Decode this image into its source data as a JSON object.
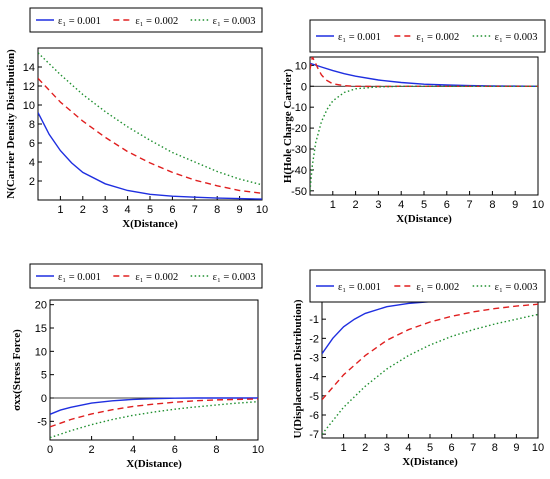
{
  "chart_data": [
    {
      "type": "line",
      "xlabel": "X(Distance)",
      "ylabel": "N(Carrier Density Distribution)",
      "xlim": [
        0,
        10
      ],
      "ylim": [
        0,
        16
      ],
      "xticks": [
        "1",
        "2",
        "3",
        "4",
        "5",
        "6",
        "7",
        "8",
        "9",
        "10"
      ],
      "yticks": [
        "2",
        "4",
        "6",
        "8",
        "10",
        "12",
        "14"
      ],
      "legend_position": "top",
      "series": [
        {
          "name": "ε₁ = 0.001",
          "color": "#1f2fe0",
          "dash": "solid",
          "x": [
            0,
            0.5,
            1,
            1.5,
            2,
            3,
            4,
            5,
            6,
            7,
            8,
            9,
            10
          ],
          "y": [
            9.2,
            6.9,
            5.2,
            3.9,
            2.9,
            1.7,
            1.0,
            0.6,
            0.4,
            0.3,
            0.2,
            0.15,
            0.1
          ]
        },
        {
          "name": "ε₁ = 0.002",
          "color": "#e01f1f",
          "dash": "dashed",
          "x": [
            0,
            1,
            2,
            3,
            4,
            5,
            6,
            7,
            8,
            9,
            10
          ],
          "y": [
            12.8,
            10.3,
            8.3,
            6.6,
            5.1,
            3.9,
            2.9,
            2.1,
            1.5,
            1.0,
            0.7
          ]
        },
        {
          "name": "ε₁ = 0.003",
          "color": "#1f8f2f",
          "dash": "dotted",
          "x": [
            0,
            1,
            2,
            3,
            4,
            5,
            6,
            7,
            8,
            9,
            10
          ],
          "y": [
            15.5,
            13.2,
            11.1,
            9.3,
            7.7,
            6.3,
            5.0,
            4.0,
            3.0,
            2.2,
            1.6
          ]
        }
      ]
    },
    {
      "type": "line",
      "xlabel": "X(Distance)",
      "ylabel": "H(Hole Charge Carrier)",
      "xlim": [
        0,
        10
      ],
      "ylim": [
        -52,
        14
      ],
      "xticks": [
        "1",
        "2",
        "3",
        "4",
        "5",
        "6",
        "7",
        "8",
        "9",
        "10"
      ],
      "yticks": [
        "10",
        "0",
        "-10",
        "-20",
        "-30",
        "-40",
        "-50"
      ],
      "legend_position": "top",
      "series": [
        {
          "name": "ε₁ = 0.001",
          "color": "#1f2fe0",
          "dash": "solid",
          "x": [
            0,
            0.5,
            1,
            1.5,
            2,
            3,
            4,
            5,
            6,
            7,
            8,
            9,
            10
          ],
          "y": [
            11,
            9.2,
            7.5,
            6.0,
            4.8,
            3.0,
            1.8,
            1.0,
            0.6,
            0.3,
            0.15,
            0.08,
            0
          ]
        },
        {
          "name": "ε₁ = 0.002",
          "color": "#e01f1f",
          "dash": "dashed",
          "x": [
            0,
            0.1,
            0.2,
            0.35,
            0.5,
            0.7,
            1,
            1.5,
            2,
            3,
            4,
            10
          ],
          "y": [
            8,
            14,
            12,
            8.5,
            5.5,
            3.0,
            1.2,
            0.3,
            0,
            -0.1,
            0,
            0
          ]
        },
        {
          "name": "ε₁ = 0.003",
          "color": "#1f8f2f",
          "dash": "dotted",
          "x": [
            0,
            0.1,
            0.25,
            0.5,
            0.75,
            1,
            1.5,
            2,
            3,
            4,
            6,
            10
          ],
          "y": [
            -50,
            -38,
            -27,
            -17,
            -11,
            -7,
            -3,
            -1.2,
            -0.3,
            0,
            0,
            0
          ]
        }
      ]
    },
    {
      "type": "line",
      "xlabel": "X(Distance)",
      "ylabel": "σxx(Stress Force)",
      "xlim": [
        0,
        10
      ],
      "ylim": [
        -9,
        21
      ],
      "xticks": [
        "0",
        "2",
        "4",
        "6",
        "8",
        "10"
      ],
      "yticks": [
        "20",
        "15",
        "10",
        "5",
        "0",
        "-5"
      ],
      "legend_position": "top",
      "series": [
        {
          "name": "ε₁ = 0.001",
          "color": "#1f2fe0",
          "dash": "solid",
          "x": [
            0,
            0.5,
            1,
            2,
            3,
            4,
            5,
            6,
            7,
            8,
            10
          ],
          "y": [
            -3.5,
            -2.6,
            -2.0,
            -1.1,
            -0.6,
            -0.3,
            -0.15,
            -0.05,
            0,
            0,
            0
          ]
        },
        {
          "name": "ε₁ = 0.002",
          "color": "#e01f1f",
          "dash": "dashed",
          "x": [
            0,
            1,
            2,
            3,
            4,
            5,
            6,
            7,
            8,
            9,
            10
          ],
          "y": [
            -6.2,
            -4.6,
            -3.4,
            -2.5,
            -1.8,
            -1.3,
            -0.9,
            -0.6,
            -0.4,
            -0.3,
            -0.2
          ]
        },
        {
          "name": "ε₁ = 0.003",
          "color": "#1f8f2f",
          "dash": "dotted",
          "x": [
            0,
            1,
            2,
            3,
            4,
            5,
            6,
            7,
            8,
            9,
            10
          ],
          "y": [
            -8.5,
            -7.0,
            -5.7,
            -4.6,
            -3.7,
            -3.0,
            -2.4,
            -1.9,
            -1.5,
            -1.1,
            -0.8
          ]
        }
      ]
    },
    {
      "type": "line",
      "xlabel": "X(Distance)",
      "ylabel": "U(Displacement Distribution)",
      "xlim": [
        0,
        10
      ],
      "ylim": [
        -7.2,
        0
      ],
      "xticks": [
        "1",
        "2",
        "3",
        "4",
        "5",
        "6",
        "7",
        "8",
        "9",
        "10"
      ],
      "yticks": [
        "-1",
        "-2",
        "-3",
        "-4",
        "-5",
        "-6",
        "-7"
      ],
      "legend_position": "top",
      "series": [
        {
          "name": "ε₁ = 0.001",
          "color": "#1f2fe0",
          "dash": "solid",
          "x": [
            0,
            0.5,
            1,
            1.5,
            2,
            3,
            4,
            5,
            6,
            7,
            8,
            9,
            10
          ],
          "y": [
            -2.8,
            -2.0,
            -1.4,
            -1.0,
            -0.7,
            -0.35,
            -0.18,
            -0.09,
            -0.04,
            -0.02,
            -0.01,
            0,
            0
          ]
        },
        {
          "name": "ε₁ = 0.002",
          "color": "#e01f1f",
          "dash": "dashed",
          "x": [
            0,
            1,
            2,
            3,
            4,
            5,
            6,
            7,
            8,
            9,
            10
          ],
          "y": [
            -5.2,
            -3.9,
            -2.9,
            -2.1,
            -1.55,
            -1.15,
            -0.85,
            -0.62,
            -0.45,
            -0.32,
            -0.22
          ]
        },
        {
          "name": "ε₁ = 0.003",
          "color": "#1f8f2f",
          "dash": "dotted",
          "x": [
            0,
            1,
            2,
            3,
            4,
            5,
            6,
            7,
            8,
            9,
            10
          ],
          "y": [
            -7.0,
            -5.6,
            -4.5,
            -3.6,
            -2.9,
            -2.35,
            -1.9,
            -1.55,
            -1.25,
            -1.0,
            -0.75
          ]
        }
      ]
    }
  ]
}
